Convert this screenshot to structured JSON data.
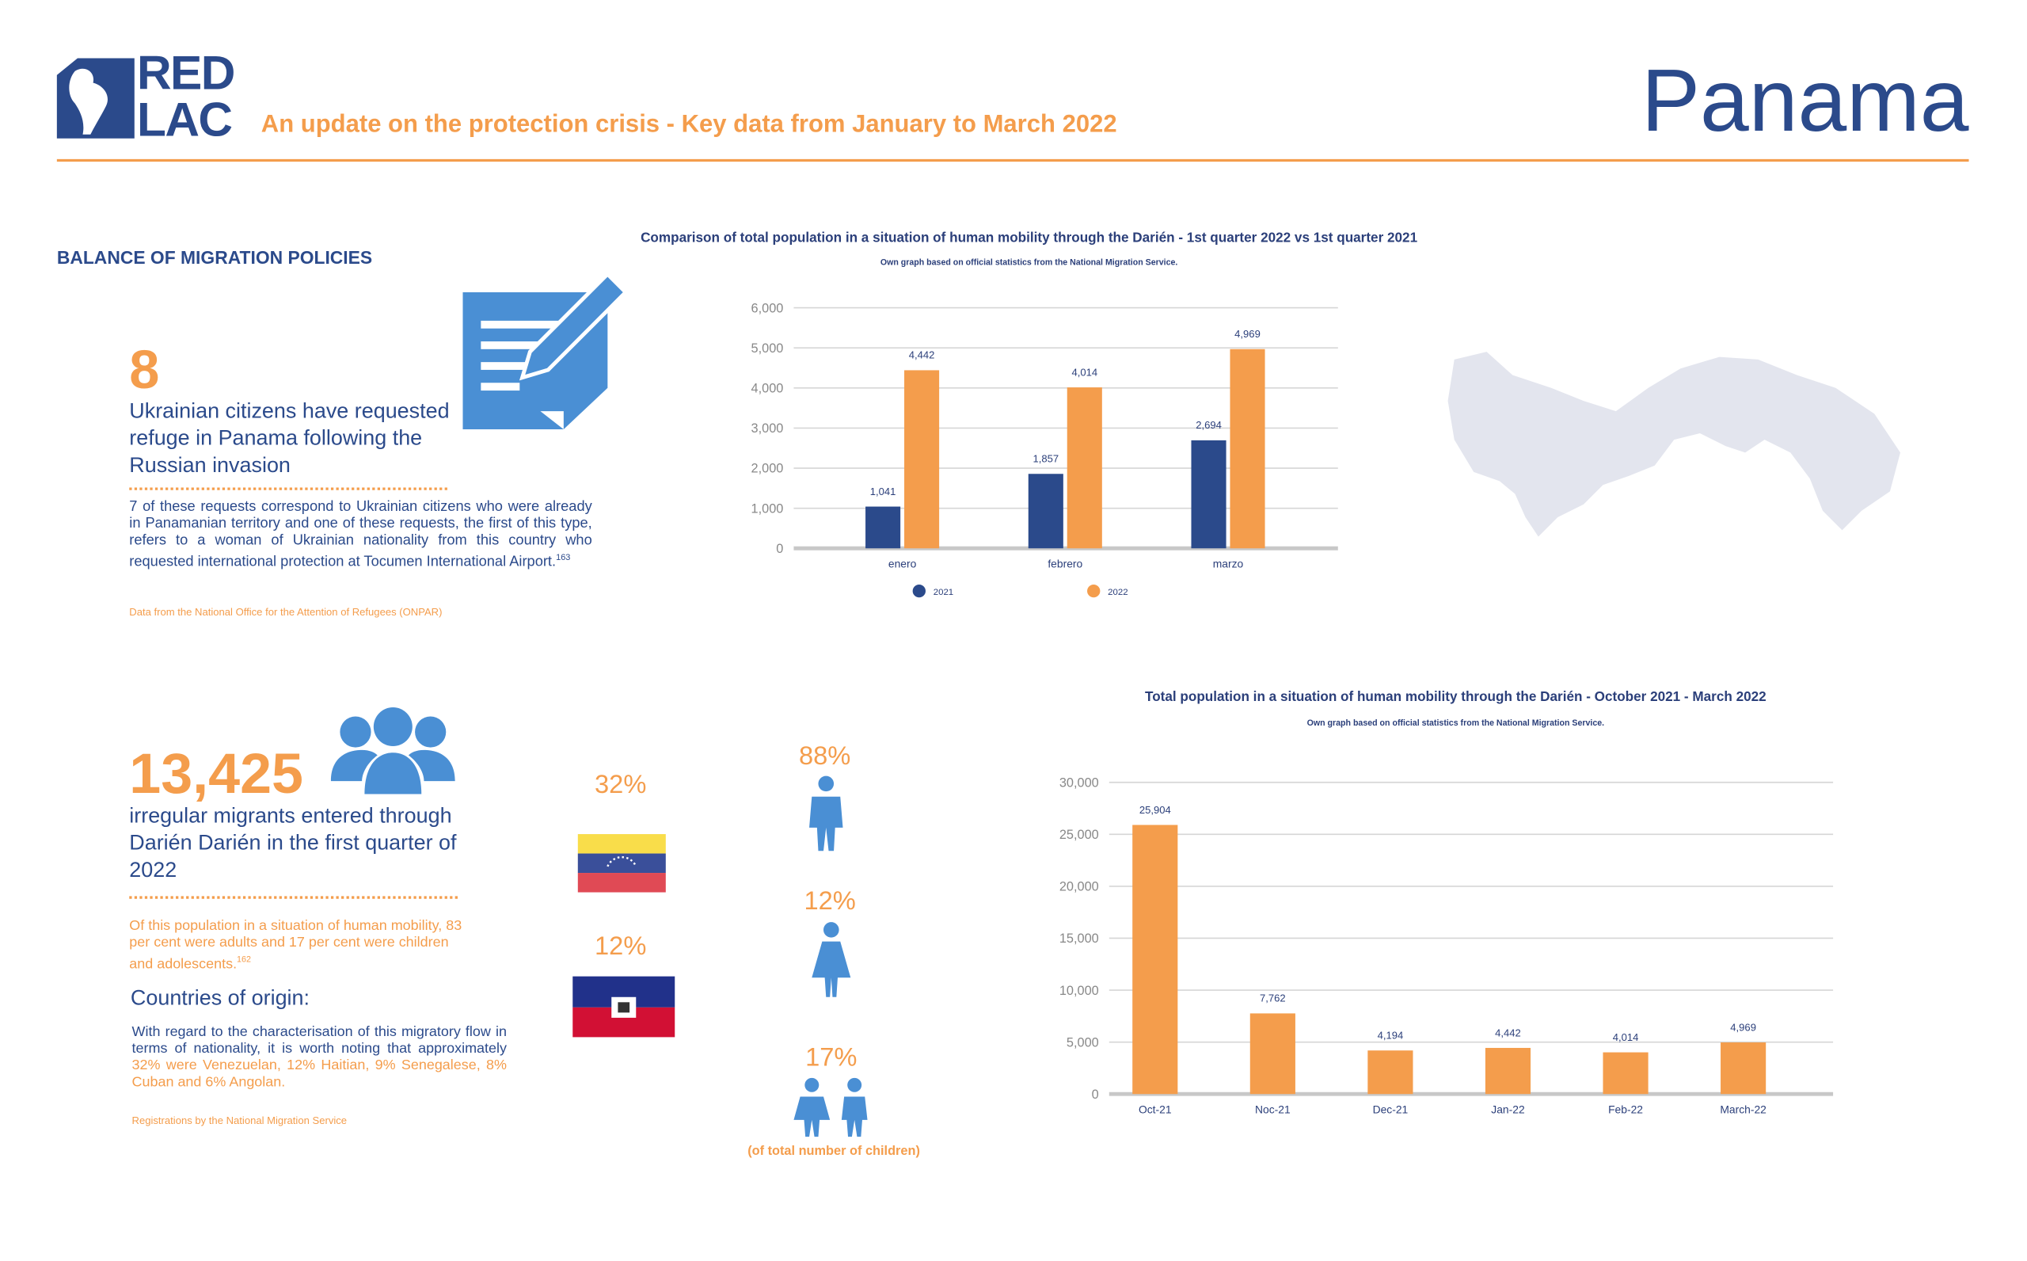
{
  "header": {
    "logo_top": "RED",
    "logo_bottom": "LAC",
    "subtitle": "An update on the protection crisis - Key data from January to March 2022",
    "country": "Panama"
  },
  "section_title": "BALANCE OF MIGRATION POLICIES",
  "refugee": {
    "number": "8",
    "headline": "Ukrainian citizens have requested refuge in Panama following the Russian invasion",
    "body": "7 of these requests correspond to Ukrainian citizens who were already in Panamanian territory and one of these requests, the first of this type, refers to a woman of Ukrainian nationality from this country who requested international protection at Tocumen International Airport.",
    "footnote": "163",
    "source": "Data from the National Office for the Attention of Refugees (ONPAR)"
  },
  "migrants": {
    "number": "13,425",
    "headline": "irregular migrants entered through Darién Darién in the first quarter of 2022",
    "body": "Of this population in a situation of human mobility, 83 per cent were adults and 17 per cent were children and adolescents.",
    "footnote": "162",
    "origin_title": "Countries of origin:",
    "origin_body": "With regard to the characterisation of this migratory flow in terms of nationality, it is worth noting that approximately",
    "origin_highlight": "32% were Venezuelan, 12% Haitian, 9% Senegalese, 8% Cuban and 6% Angolan.",
    "source": "Registrations by the National Migration Service"
  },
  "nationalities": {
    "venezuela": "32%",
    "haiti": "12%"
  },
  "demographics": {
    "men": "88%",
    "women": "12%",
    "children": "17%",
    "children_note": "(of total number of children)"
  },
  "chart_data": [
    {
      "type": "bar",
      "title": "Comparison of total population in a situation of human mobility through the Darién - 1st quarter 2022 vs 1st quarter 2021",
      "subtitle": "Own graph based on official statistics from the National Migration Service.",
      "categories": [
        "enero",
        "febrero",
        "marzo"
      ],
      "series": [
        {
          "name": "2021",
          "color": "#2b4a8b",
          "values": [
            1041,
            1857,
            2694
          ],
          "value_labels": [
            "1,041",
            "1,857",
            "2,694"
          ]
        },
        {
          "name": "2022",
          "color": "#f49d4c",
          "values": [
            4442,
            4014,
            4969
          ],
          "value_labels": [
            "4,442",
            "4,014",
            "4,969"
          ]
        }
      ],
      "ylim": [
        0,
        6000
      ],
      "yticks": [
        0,
        {
          "value": 1000,
          "label": "1,000"
        },
        {
          "value": 2000,
          "label": "2,000"
        },
        {
          "value": 3000,
          "label": "3,000"
        },
        {
          "value": 4000,
          "label": "4,000"
        },
        {
          "value": 5000,
          "label": "5,000"
        },
        {
          "value": 6000,
          "label": "6,000"
        }
      ],
      "grid": true,
      "legend": "bottom"
    },
    {
      "type": "bar",
      "title": "Total population in a situation of human mobility through the Darién - October 2021 - March 2022",
      "subtitle": "Own graph based on official statistics from the National Migration Service.",
      "categories": [
        "Oct-21",
        "Noc-21",
        "Dec-21",
        "Jan-22",
        "Feb-22",
        "March-22"
      ],
      "values": [
        25904,
        7762,
        4194,
        4442,
        4014,
        4969
      ],
      "value_labels": [
        "25,904",
        "7,762",
        "4,194",
        "4,442",
        "4,014",
        "4,969"
      ],
      "color": "#f49d4c",
      "ylim": [
        0,
        30000
      ],
      "yticks": [
        0,
        {
          "value": 5000,
          "label": "5,000"
        },
        {
          "value": 10000,
          "label": "10,000"
        },
        {
          "value": 15000,
          "label": "15,000"
        },
        {
          "value": 20000,
          "label": "20,000"
        },
        {
          "value": 25000,
          "label": "25,000"
        },
        {
          "value": 30000,
          "label": "30,000"
        }
      ],
      "grid": true
    }
  ]
}
